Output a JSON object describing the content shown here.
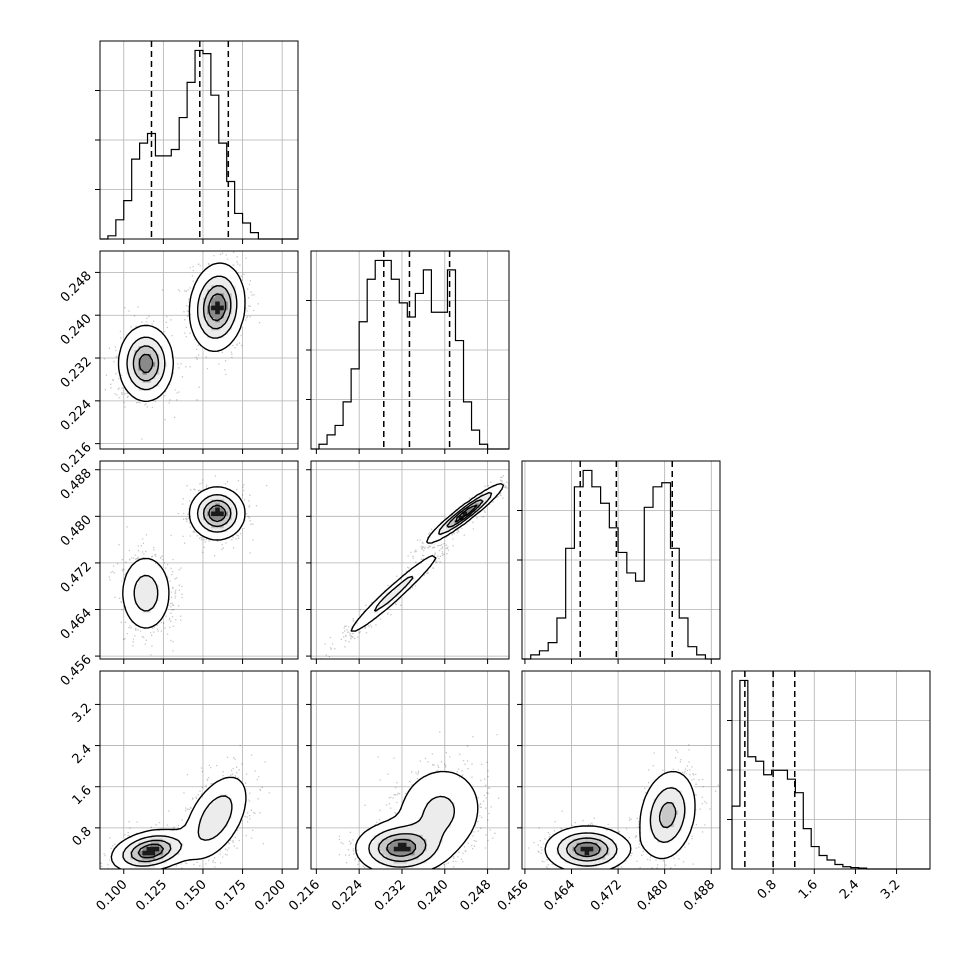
{
  "chart_data": {
    "type": "corner",
    "params": [
      {
        "range": [
          0.085,
          0.21
        ],
        "ticks": [
          0.1,
          0.125,
          0.15,
          0.175,
          0.2
        ],
        "tick_labels": [
          "0.100",
          "0.125",
          "0.150",
          "0.175",
          "0.200"
        ],
        "quantiles": [
          0.1175,
          0.148,
          0.166
        ],
        "hist": {
          "edges": [
            0.085,
            0.09,
            0.095,
            0.1,
            0.105,
            0.11,
            0.115,
            0.12,
            0.125,
            0.13,
            0.135,
            0.14,
            0.145,
            0.15,
            0.155,
            0.16,
            0.165,
            0.17,
            0.175,
            0.18,
            0.185,
            0.19,
            0.195,
            0.2,
            0.205,
            0.21
          ],
          "counts": [
            0,
            1,
            6,
            12,
            25,
            30,
            33,
            26,
            26,
            28,
            38,
            49,
            59,
            58,
            45,
            30,
            18,
            8,
            5,
            2,
            0,
            0,
            0,
            0,
            0
          ]
        }
      },
      {
        "range": [
          0.215,
          0.252
        ],
        "ticks": [
          0.216,
          0.224,
          0.232,
          0.24,
          0.248
        ],
        "tick_labels": [
          "0.216",
          "0.224",
          "0.232",
          "0.240",
          "0.248"
        ],
        "quantiles": [
          0.2286,
          0.2334,
          0.2409
        ],
        "hist": {
          "edges": [
            0.215,
            0.2165,
            0.218,
            0.2195,
            0.221,
            0.2225,
            0.224,
            0.2255,
            0.227,
            0.2285,
            0.23,
            0.2315,
            0.233,
            0.2345,
            0.236,
            0.2375,
            0.239,
            0.2405,
            0.242,
            0.2435,
            0.245,
            0.2465,
            0.248,
            0.2495,
            0.251,
            0.252
          ],
          "counts": [
            0,
            1,
            3,
            5,
            10,
            17,
            27,
            36,
            40,
            40,
            36,
            31,
            28,
            33,
            38,
            29,
            29,
            38,
            23,
            10,
            4,
            1,
            0,
            0,
            0
          ]
        }
      },
      {
        "range": [
          0.4555,
          0.4895
        ],
        "ticks": [
          0.456,
          0.464,
          0.472,
          0.48,
          0.488
        ],
        "tick_labels": [
          "0.456",
          "0.464",
          "0.472",
          "0.480",
          "0.488"
        ],
        "quantiles": [
          0.4655,
          0.4717,
          0.4813
        ],
        "hist": {
          "edges": [
            0.4555,
            0.457,
            0.4585,
            0.46,
            0.4615,
            0.463,
            0.4645,
            0.466,
            0.4675,
            0.469,
            0.4705,
            0.472,
            0.4735,
            0.475,
            0.4765,
            0.478,
            0.4795,
            0.481,
            0.4825,
            0.484,
            0.4855,
            0.487,
            0.4885,
            0.4895
          ],
          "counts": [
            0,
            1,
            2,
            4,
            10,
            27,
            42,
            46,
            42,
            38,
            32,
            26,
            21,
            19,
            37,
            42,
            43,
            27,
            10,
            3,
            1,
            0,
            0
          ]
        }
      },
      {
        "range": [
          0.0,
          3.85
        ],
        "ticks": [
          0.8,
          1.6,
          2.4,
          3.2
        ],
        "tick_labels": [
          "0.8",
          "1.6",
          "2.4",
          "3.2"
        ],
        "quantiles": [
          0.25,
          0.8,
          1.22
        ],
        "hist": {
          "edges": [
            0.0,
            0.154,
            0.308,
            0.462,
            0.616,
            0.77,
            0.924,
            1.078,
            1.232,
            1.386,
            1.54,
            1.694,
            1.848,
            2.002,
            2.156,
            2.31,
            2.464,
            2.618,
            2.772,
            2.926,
            3.08,
            3.234,
            3.388,
            3.542,
            3.696,
            3.85
          ],
          "counts": [
            14,
            42,
            25,
            24,
            21,
            22,
            22,
            20,
            17,
            9,
            5,
            3,
            2,
            1,
            0.5,
            0.3,
            0.2,
            0,
            0,
            0,
            0,
            0,
            0,
            0,
            0
          ]
        }
      }
    ],
    "pairs": [
      {
        "row": 1,
        "col": 0,
        "modes": [
          {
            "x": 0.114,
            "y": 0.231,
            "sx": 0.0085,
            "sy": 0.0035,
            "rho": 0.0,
            "w": 0.45
          },
          {
            "x": 0.159,
            "y": 0.2415,
            "sx": 0.0085,
            "sy": 0.004,
            "rho": 0.1,
            "w": 0.55
          }
        ]
      },
      {
        "row": 2,
        "col": 0,
        "modes": [
          {
            "x": 0.114,
            "y": 0.4668,
            "sx": 0.0085,
            "sy": 0.0035,
            "rho": 0.0,
            "w": 0.45
          },
          {
            "x": 0.159,
            "y": 0.4805,
            "sx": 0.0085,
            "sy": 0.0022,
            "rho": 0.0,
            "w": 0.55
          }
        ]
      },
      {
        "row": 2,
        "col": 1,
        "modes": [
          {
            "x": 0.2305,
            "y": 0.4668,
            "sx": 0.0048,
            "sy": 0.004,
            "rho": 0.97,
            "w": 0.45
          },
          {
            "x": 0.2438,
            "y": 0.4805,
            "sx": 0.0035,
            "sy": 0.0025,
            "rho": 0.95,
            "w": 0.55
          }
        ]
      },
      {
        "row": 3,
        "col": 0,
        "modes": [
          {
            "x": 0.117,
            "y": 0.35,
            "sx": 0.012,
            "sy": 0.2,
            "rho": 0.3,
            "w": 0.5
          },
          {
            "x": 0.158,
            "y": 1.0,
            "sx": 0.011,
            "sy": 0.45,
            "rho": 0.5,
            "w": 0.5
          }
        ]
      },
      {
        "row": 3,
        "col": 1,
        "modes": [
          {
            "x": 0.2315,
            "y": 0.4,
            "sx": 0.004,
            "sy": 0.25,
            "rho": 0.0,
            "w": 0.5
          },
          {
            "x": 0.239,
            "y": 1.1,
            "sx": 0.0045,
            "sy": 0.5,
            "rho": 0.1,
            "w": 0.5
          }
        ]
      },
      {
        "row": 3,
        "col": 2,
        "modes": [
          {
            "x": 0.4667,
            "y": 0.38,
            "sx": 0.0035,
            "sy": 0.22,
            "rho": 0.0,
            "w": 0.5
          },
          {
            "x": 0.4805,
            "y": 1.05,
            "sx": 0.0025,
            "sy": 0.45,
            "rho": 0.2,
            "w": 0.5
          }
        ]
      }
    ],
    "title": "",
    "legend": "none",
    "grid": true
  }
}
